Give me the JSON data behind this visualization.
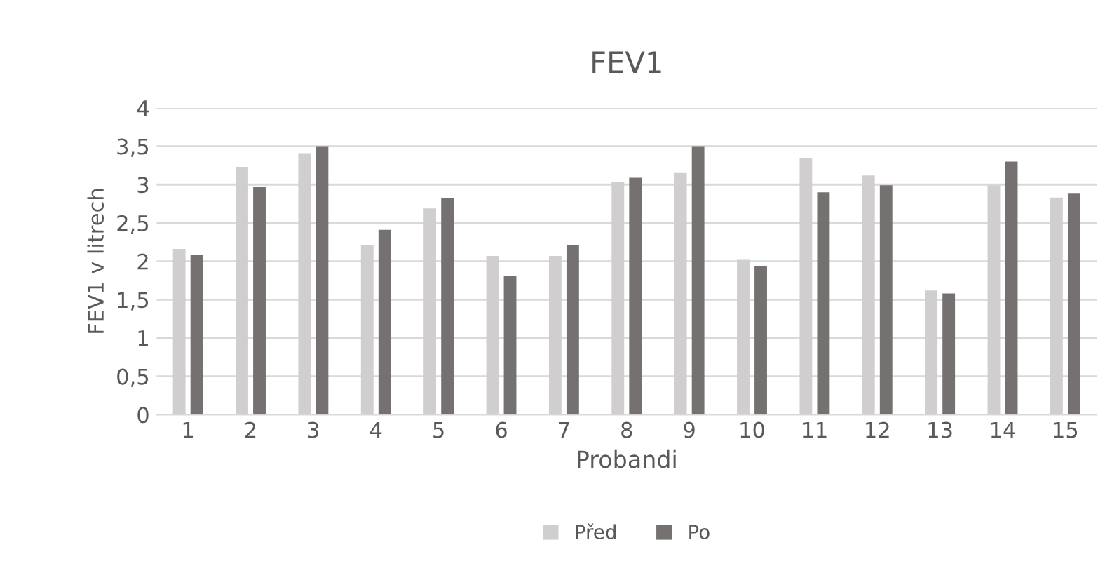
{
  "chart_data": {
    "type": "bar",
    "title": "FEV1",
    "xlabel": "Probandi",
    "ylabel": "FEV1 v litrech",
    "categories": [
      "1",
      "2",
      "3",
      "4",
      "5",
      "6",
      "7",
      "8",
      "9",
      "10",
      "11",
      "12",
      "13",
      "14",
      "15"
    ],
    "series": [
      {
        "name": "Před",
        "color": "#d0cece",
        "values": [
          2.16,
          3.23,
          3.41,
          2.21,
          2.69,
          2.07,
          2.07,
          3.04,
          3.16,
          2.02,
          3.34,
          3.12,
          1.62,
          2.99,
          2.83
        ]
      },
      {
        "name": "Po",
        "color": "#767171",
        "values": [
          2.08,
          2.97,
          3.5,
          2.41,
          2.82,
          1.81,
          2.21,
          3.09,
          3.5,
          1.94,
          2.9,
          2.99,
          1.58,
          3.3,
          2.89
        ]
      }
    ],
    "ylim": [
      0,
      4
    ],
    "yticks": [
      0,
      {
        "value": 0.5,
        "label": "0,5"
      },
      1,
      {
        "value": 1.5,
        "label": "1,5"
      },
      2,
      {
        "value": 2.5,
        "label": "2,5"
      },
      3,
      {
        "value": 3.5,
        "label": "3,5"
      },
      4
    ],
    "grid": "y",
    "legend": "bottom"
  }
}
